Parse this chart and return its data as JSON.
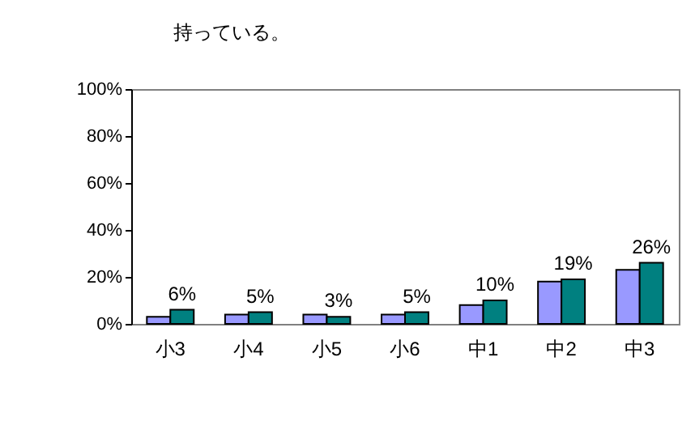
{
  "chart_data": {
    "type": "bar",
    "title": "持っている。",
    "categories": [
      "小3",
      "小4",
      "小5",
      "小6",
      "中1",
      "中2",
      "中3"
    ],
    "series": [
      {
        "color": "#9999ff",
        "values": [
          3,
          4,
          4,
          4,
          8,
          18,
          23
        ]
      },
      {
        "color": "#008080",
        "values": [
          6,
          5,
          3,
          5,
          10,
          19,
          26
        ],
        "value_labels": [
          "6%",
          "5%",
          "3%",
          "5%",
          "10%",
          "19%",
          "26%"
        ]
      }
    ],
    "ylim": [
      0,
      100
    ],
    "yticks": [
      {
        "value": 0,
        "label": "0%"
      },
      {
        "value": 20,
        "label": "20%"
      },
      {
        "value": 40,
        "label": "40%"
      },
      {
        "value": 60,
        "label": "60%"
      },
      {
        "value": 80,
        "label": "80%"
      },
      {
        "value": 100,
        "label": "100%"
      }
    ],
    "grid": false
  }
}
